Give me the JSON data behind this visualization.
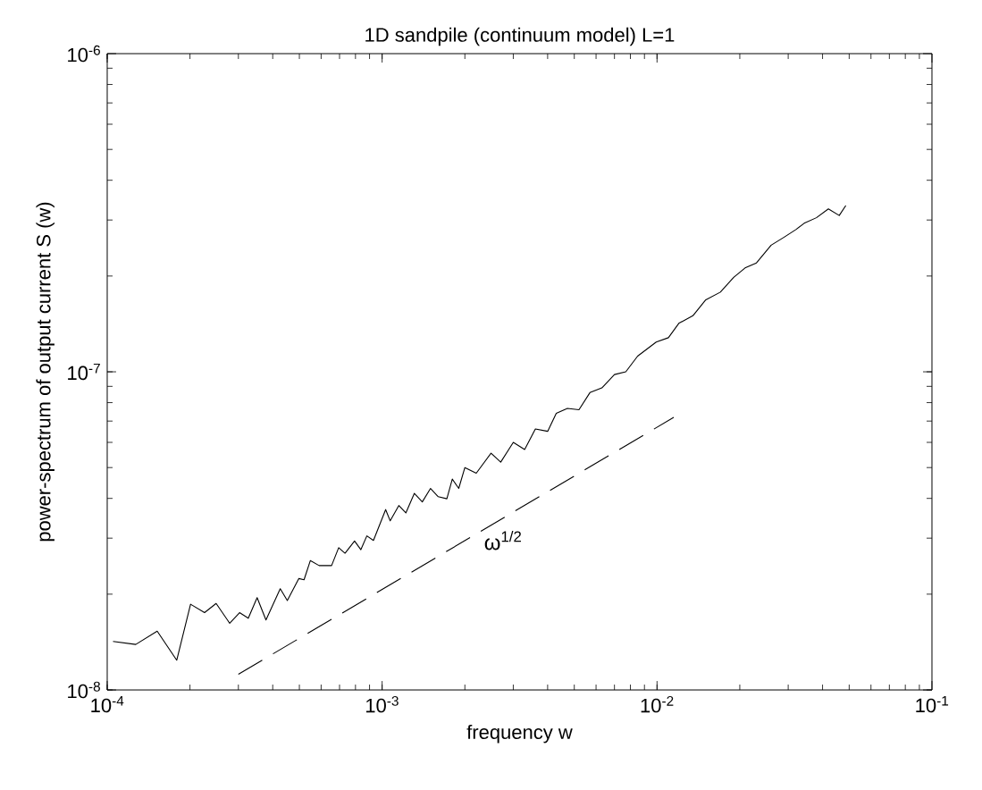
{
  "chart_data": {
    "type": "line",
    "title": "1D sandpile (continuum model) L=1",
    "xlabel": "frequency w",
    "ylabel": "power-spectrum of output current S (w)",
    "log": "xy",
    "xlim": [
      0.0001,
      0.1
    ],
    "ylim": [
      1e-08,
      1e-06
    ],
    "xticks": [
      {
        "value": 0.0001,
        "label": "10$^{-4}$"
      },
      {
        "value": 0.001,
        "label": "10$^{-3}$"
      },
      {
        "value": 0.01,
        "label": "10$^{-2}$"
      },
      {
        "value": 0.1,
        "label": "10$^{-1}$"
      }
    ],
    "yticks": [
      {
        "value": 1e-08,
        "label": "10$^{-8}$"
      },
      {
        "value": 1e-07,
        "label": "10$^{-7}$"
      },
      {
        "value": 1e-06,
        "label": "10$^{-6}$"
      }
    ],
    "series": [
      {
        "color": "#000000",
        "line_style": "solid",
        "x": [
          0.000105,
          0.000127,
          0.000152,
          0.000179,
          0.000201,
          0.000226,
          0.000249,
          0.000279,
          0.000303,
          0.000326,
          0.000351,
          0.000378,
          0.000426,
          0.000452,
          0.000498,
          0.00052,
          0.000548,
          0.00059,
          0.000655,
          0.000695,
          0.000733,
          0.000794,
          0.000837,
          0.00088,
          0.00093,
          0.00103,
          0.00107,
          0.00115,
          0.00122,
          0.00131,
          0.0014,
          0.0015,
          0.0016,
          0.00172,
          0.0018,
          0.0019,
          0.002,
          0.0022,
          0.00249,
          0.0027,
          0.003,
          0.0033,
          0.00361,
          0.004,
          0.0043,
          0.00472,
          0.0052,
          0.0057,
          0.0063,
          0.007,
          0.0077,
          0.0085,
          0.00993,
          0.011,
          0.012,
          0.0135,
          0.015,
          0.017,
          0.019,
          0.0209,
          0.023,
          0.026,
          0.029,
          0.032,
          0.0343,
          0.038,
          0.042,
          0.046,
          0.0486
        ],
        "values": [
          1.42e-08,
          1.39e-08,
          1.53e-08,
          1.24e-08,
          1.86e-08,
          1.75e-08,
          1.87e-08,
          1.62e-08,
          1.75e-08,
          1.68e-08,
          1.95e-08,
          1.66e-08,
          2.08e-08,
          1.91e-08,
          2.24e-08,
          2.22e-08,
          2.55e-08,
          2.46e-08,
          2.46e-08,
          2.8e-08,
          2.69e-08,
          2.94e-08,
          2.76e-08,
          3.05e-08,
          2.95e-08,
          3.69e-08,
          3.4e-08,
          3.8e-08,
          3.6e-08,
          4.15e-08,
          3.9e-08,
          4.3e-08,
          4.05e-08,
          3.99e-08,
          4.6e-08,
          4.3e-08,
          5e-08,
          4.8e-08,
          5.55e-08,
          5.2e-08,
          6e-08,
          5.7e-08,
          6.61e-08,
          6.5e-08,
          7.4e-08,
          7.67e-08,
          7.6e-08,
          8.6e-08,
          8.9e-08,
          9.8e-08,
          1e-07,
          1.12e-07,
          1.24e-07,
          1.28e-07,
          1.42e-07,
          1.5e-07,
          1.68e-07,
          1.78e-07,
          1.98e-07,
          2.12e-07,
          2.2e-07,
          2.5e-07,
          2.65e-07,
          2.8e-07,
          2.93e-07,
          3.05e-07,
          3.25e-07,
          3.1e-07,
          3.33e-07
        ]
      },
      {
        "color": "#000000",
        "line_style": "dashed",
        "x": [
          0.0003,
          0.0115
        ],
        "values": [
          1.12e-08,
          7.19e-08
        ]
      }
    ],
    "annotations": [
      "ω$^{1/2}$"
    ]
  }
}
